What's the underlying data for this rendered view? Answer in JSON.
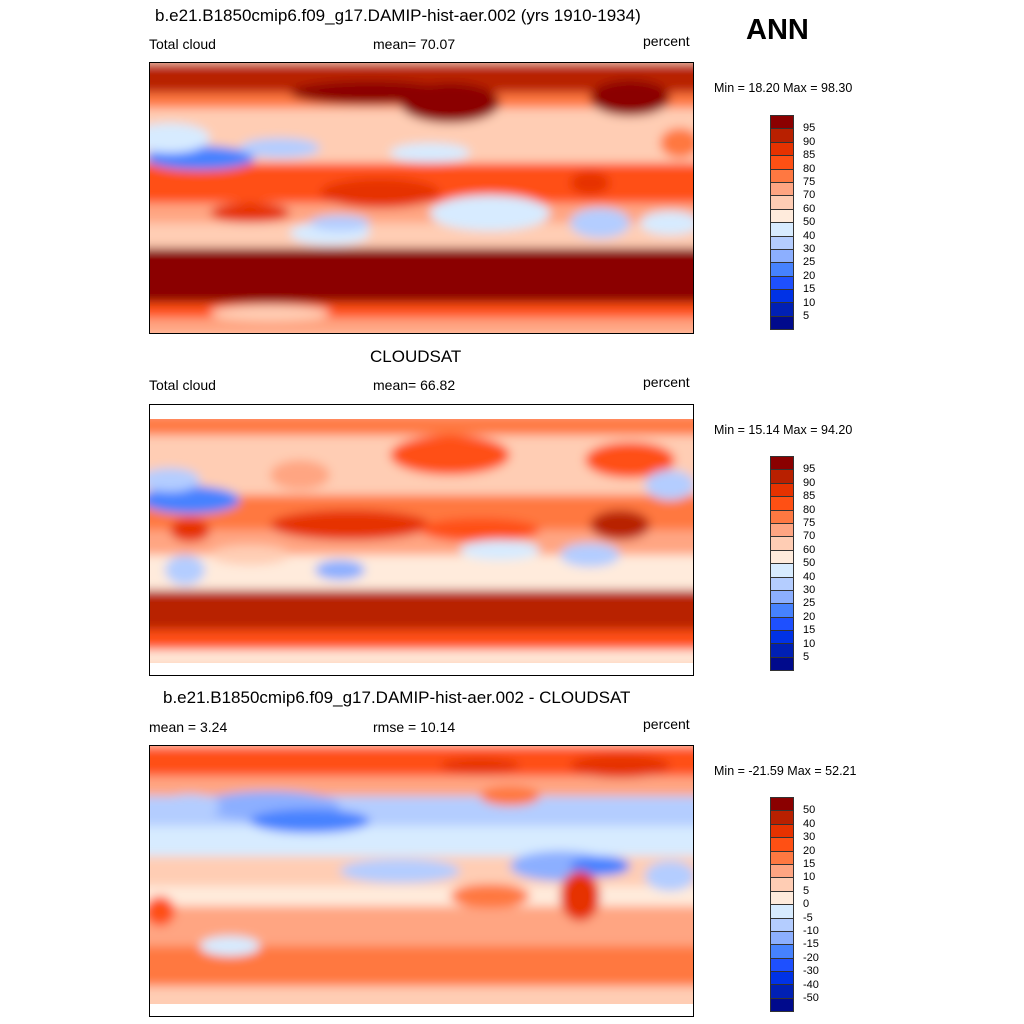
{
  "ann_label": "ANN",
  "chart_data": [
    {
      "type": "heatmap",
      "title": "b.e21.B1850cmip6.f09_g17.DAMIP-hist-aer.002 (yrs 1910-1934)",
      "left_label": "Total cloud",
      "center_label": "mean=  70.07",
      "right_label": "percent",
      "minmax_label": "Min =  18.20 Max =  98.30",
      "min": 18.2,
      "max": 98.3,
      "mean": 70.07,
      "colorbar_levels": [
        "95",
        "90",
        "85",
        "80",
        "75",
        "70",
        "60",
        "50",
        "40",
        "30",
        "25",
        "20",
        "15",
        "10",
        "5"
      ]
    },
    {
      "type": "heatmap",
      "title": "CLOUDSAT",
      "left_label": "Total cloud",
      "center_label": "mean=  66.82",
      "right_label": "percent",
      "minmax_label": "Min =  15.14 Max =  94.20",
      "min": 15.14,
      "max": 94.2,
      "mean": 66.82,
      "colorbar_levels": [
        "95",
        "90",
        "85",
        "80",
        "75",
        "70",
        "60",
        "50",
        "40",
        "30",
        "25",
        "20",
        "15",
        "10",
        "5"
      ]
    },
    {
      "type": "heatmap",
      "title": "b.e21.B1850cmip6.f09_g17.DAMIP-hist-aer.002 - CLOUDSAT",
      "left_label": "mean =   3.24",
      "center_label": "rmse =   10.14",
      "right_label": "percent",
      "minmax_label": "Min = -21.59 Max =  52.21",
      "min": -21.59,
      "max": 52.21,
      "mean": 3.24,
      "rmse": 10.14,
      "colorbar_levels": [
        "50",
        "40",
        "30",
        "20",
        "15",
        "10",
        "5",
        "0",
        "-5",
        "-10",
        "-15",
        "-20",
        "-30",
        "-40",
        "-50"
      ]
    }
  ],
  "colormap": [
    "#8b0000",
    "#b82000",
    "#e63200",
    "#ff5014",
    "#ff7841",
    "#ffa582",
    "#ffcdb4",
    "#ffebdc",
    "#d7ebff",
    "#b4cdff",
    "#8cafff",
    "#4682ff",
    "#1e50ff",
    "#0032e6",
    "#0020b4",
    "#000a8c"
  ]
}
